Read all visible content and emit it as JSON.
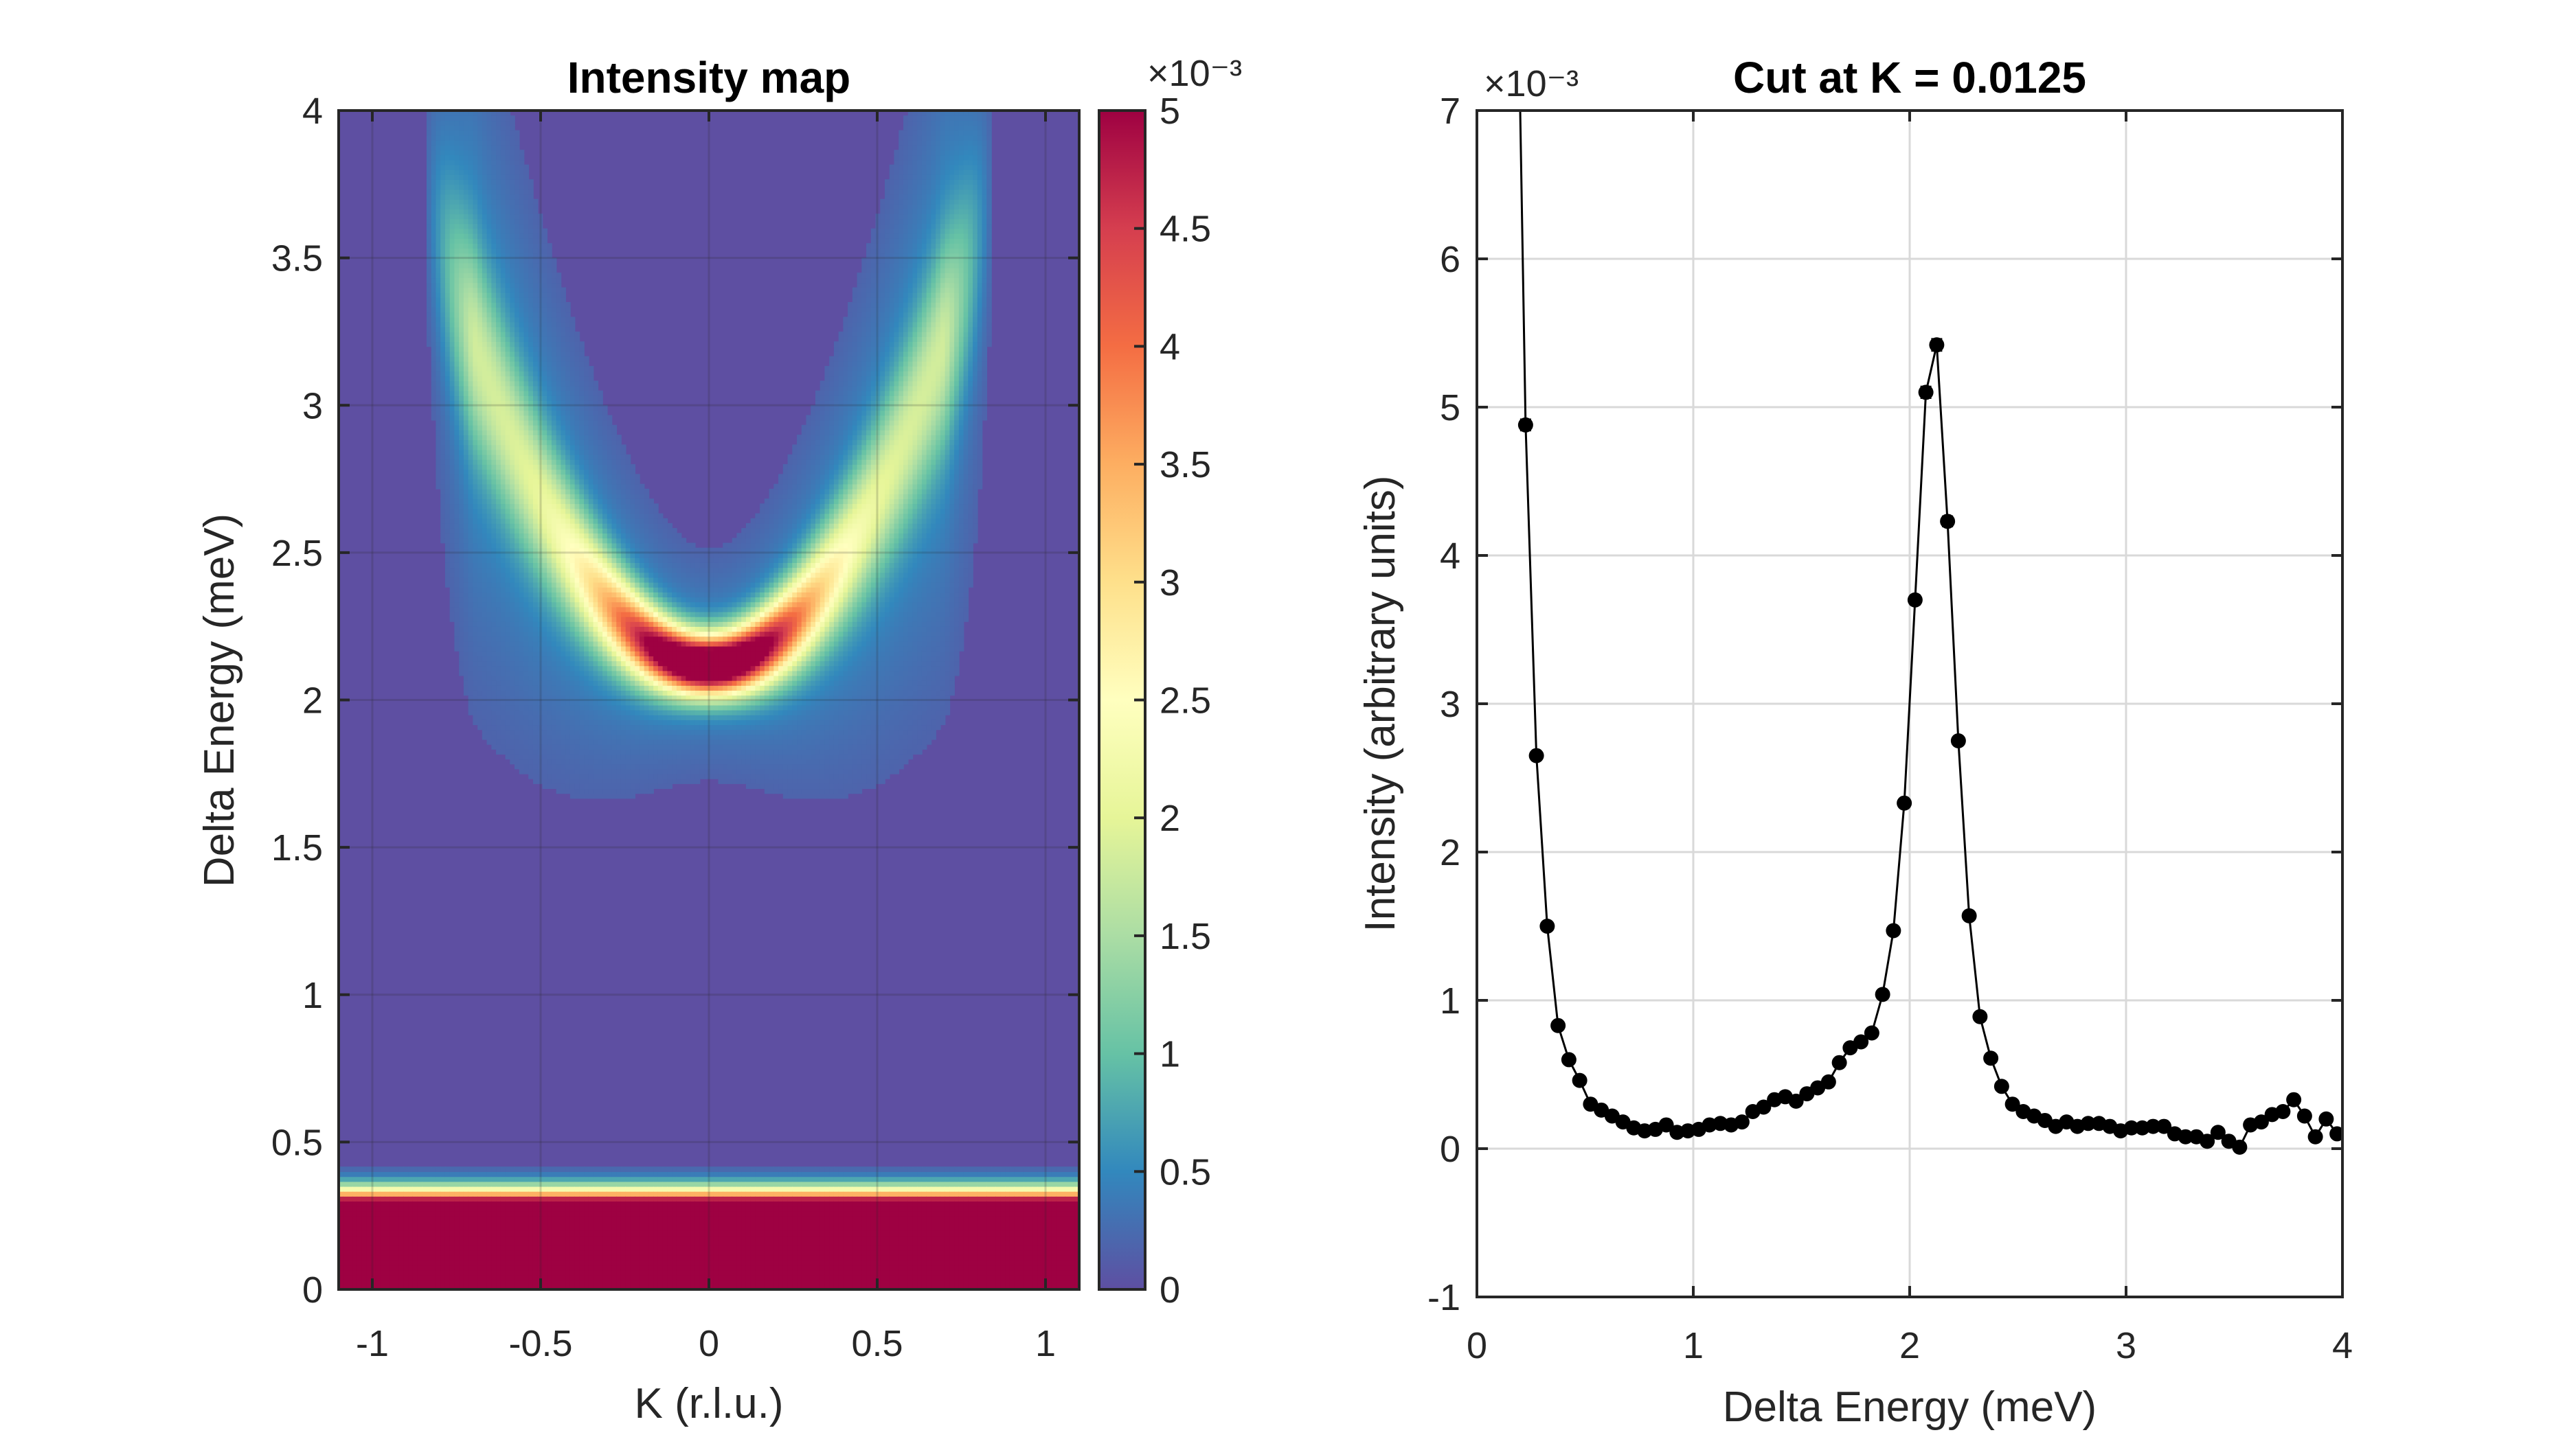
{
  "colors": {
    "axis": "#262626",
    "grid": "#d9d9d9",
    "marker": "#000000",
    "colormap": [
      "#5e4fa2",
      "#3288bd",
      "#66c2a5",
      "#abdda4",
      "#e6f598",
      "#ffffbf",
      "#fee08b",
      "#fdae61",
      "#f46d43",
      "#d53e4f",
      "#9e0142"
    ]
  },
  "chart_data": [
    {
      "type": "heatmap",
      "title": "Intensity map",
      "xlabel": "K (r.l.u.)",
      "ylabel": "Delta Energy (meV)",
      "xlim": [
        -1.1,
        1.1
      ],
      "ylim": [
        0,
        4
      ],
      "xticks": [
        -1,
        -0.5,
        0,
        0.5,
        1
      ],
      "xtick_labels": [
        "-1",
        "-0.5",
        "0",
        "0.5",
        "1"
      ],
      "yticks": [
        0,
        0.5,
        1,
        1.5,
        2,
        2.5,
        3,
        3.5,
        4
      ],
      "ytick_labels": [
        "0",
        "0.5",
        "1",
        "1.5",
        "2",
        "2.5",
        "3",
        "3.5",
        "4"
      ],
      "grid": true,
      "colormap": "spectral",
      "colorbar": {
        "clim": [
          0,
          0.005
        ],
        "ticks": [
          0,
          0.0005,
          0.001,
          0.0015,
          0.002,
          0.0025,
          0.003,
          0.0035,
          0.004,
          0.0045,
          0.005
        ],
        "tick_labels": [
          "0",
          "0.5",
          "1",
          "1.5",
          "2",
          "2.5",
          "3",
          "3.5",
          "4",
          "4.5",
          "5"
        ],
        "exponent_label": "×10⁻³"
      },
      "features": {
        "dispersion_minimum": {
          "k": 0,
          "energy": 2.12
        },
        "dispersion_branch_end": [
          {
            "k": -0.8,
            "energy": 3.55
          },
          {
            "k": 0.8,
            "energy": 3.55
          }
        ],
        "elastic_line": {
          "energy_max": 0.27
        }
      }
    },
    {
      "type": "scatter",
      "title": "Cut at K = 0.0125",
      "xlabel": "Delta Energy (meV)",
      "ylabel": "Intensity (arbitrary units)",
      "xlim": [
        0,
        4
      ],
      "ylim": [
        -1,
        7
      ],
      "y_scale_label": "×10⁻³",
      "xticks": [
        0,
        1,
        2,
        3,
        4
      ],
      "xtick_labels": [
        "0",
        "1",
        "2",
        "3",
        "4"
      ],
      "yticks": [
        -1,
        0,
        1,
        2,
        3,
        4,
        5,
        6,
        7
      ],
      "ytick_labels": [
        "-1",
        "0",
        "1",
        "2",
        "3",
        "4",
        "5",
        "6",
        "7"
      ],
      "grid": true,
      "error_bars": true,
      "series": [
        {
          "x": [
            0.225,
            0.275,
            0.325,
            0.375,
            0.425,
            0.475,
            0.525,
            0.575,
            0.625,
            0.675,
            0.725,
            0.775,
            0.825,
            0.875,
            0.925,
            0.975,
            1.025,
            1.075,
            1.125,
            1.175,
            1.225,
            1.275,
            1.325,
            1.375,
            1.425,
            1.475,
            1.525,
            1.575,
            1.625,
            1.675,
            1.725,
            1.775,
            1.825,
            1.875,
            1.925,
            1.975,
            2.025,
            2.075,
            2.125,
            2.175,
            2.225,
            2.275,
            2.325,
            2.375,
            2.425,
            2.475,
            2.525,
            2.575,
            2.625,
            2.675,
            2.725,
            2.775,
            2.825,
            2.875,
            2.925,
            2.975,
            3.025,
            3.075,
            3.125,
            3.175,
            3.225,
            3.275,
            3.325,
            3.375,
            3.425,
            3.475,
            3.525,
            3.575,
            3.625,
            3.675,
            3.725,
            3.775,
            3.825,
            3.875,
            3.925,
            3.975
          ],
          "y": [
            4.88,
            2.65,
            1.5,
            0.83,
            0.6,
            0.46,
            0.3,
            0.26,
            0.22,
            0.18,
            0.14,
            0.12,
            0.13,
            0.16,
            0.11,
            0.12,
            0.13,
            0.16,
            0.17,
            0.16,
            0.18,
            0.25,
            0.28,
            0.33,
            0.35,
            0.32,
            0.37,
            0.41,
            0.45,
            0.58,
            0.68,
            0.72,
            0.78,
            1.04,
            1.47,
            2.33,
            3.7,
            5.1,
            5.42,
            4.23,
            2.75,
            1.57,
            0.89,
            0.61,
            0.42,
            0.3,
            0.25,
            0.22,
            0.19,
            0.15,
            0.18,
            0.15,
            0.17,
            0.17,
            0.15,
            0.12,
            0.14,
            0.14,
            0.15,
            0.15,
            0.1,
            0.08,
            0.08,
            0.05,
            0.11,
            0.05,
            0.01,
            0.16,
            0.18,
            0.23,
            0.25,
            0.33,
            0.22,
            0.08,
            0.2,
            0.1
          ],
          "y_outside_axes": [
            [
              0.2,
              7.0
            ]
          ]
        }
      ]
    }
  ]
}
